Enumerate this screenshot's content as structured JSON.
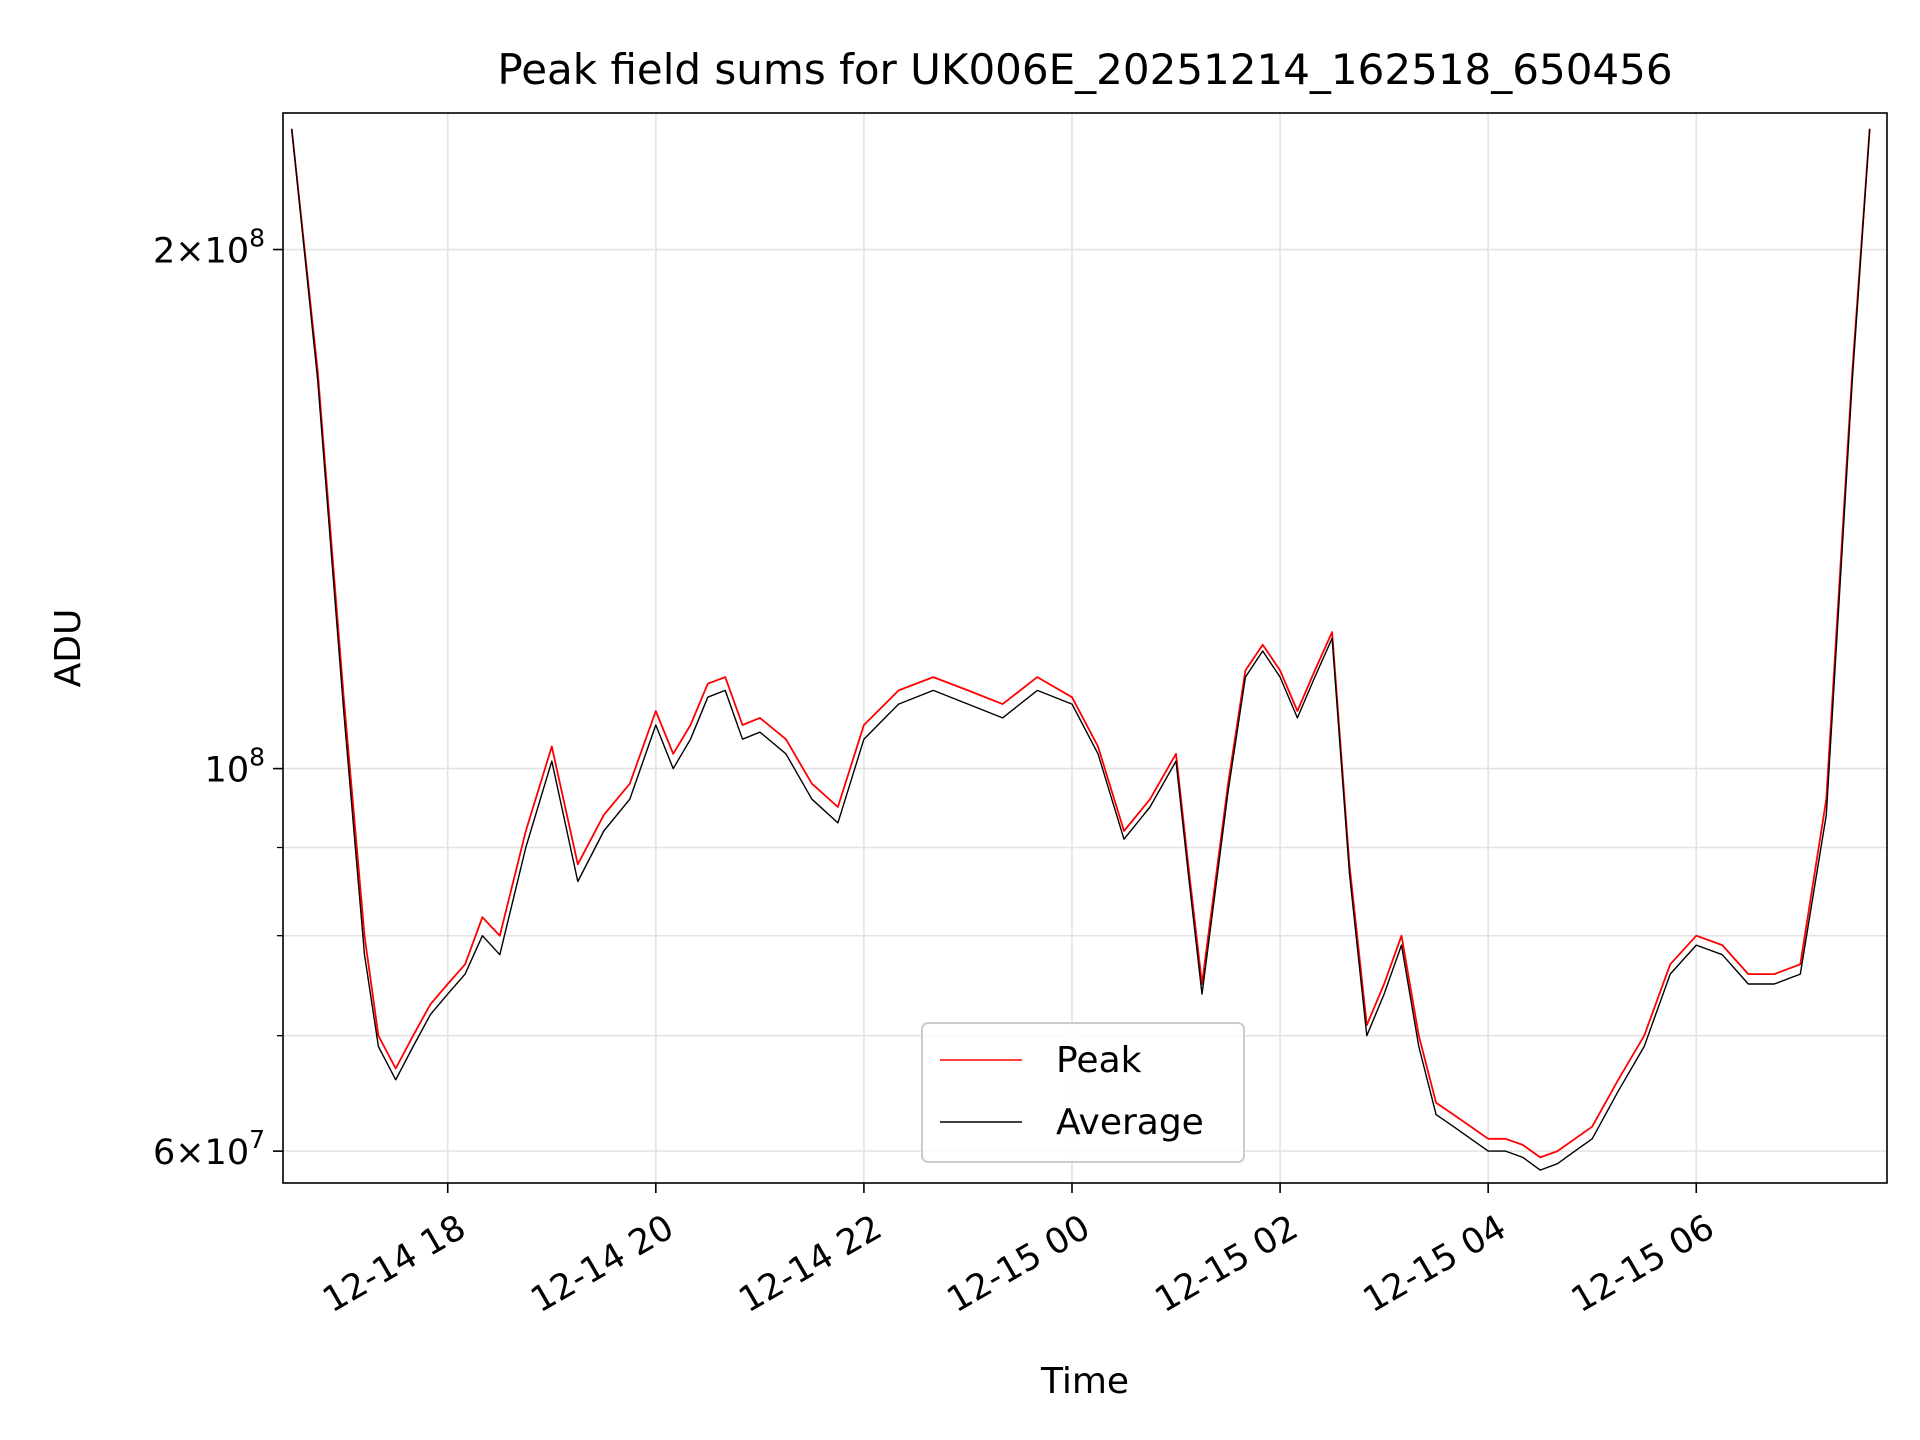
{
  "chart_data": {
    "type": "line",
    "title": "Peak field sums for UK006E_20251214_162518_650456",
    "xlabel": "Time",
    "ylabel": "ADU",
    "yscale": "log",
    "xlim": [
      "2025-12-14 16:25",
      "2025-12-15 07:50"
    ],
    "ylim": [
      57500000,
      240000000
    ],
    "x_ticks": [
      {
        "t": "2025-12-14 18:00",
        "label": "12-14 18"
      },
      {
        "t": "2025-12-14 20:00",
        "label": "12-14 20"
      },
      {
        "t": "2025-12-14 22:00",
        "label": "12-14 22"
      },
      {
        "t": "2025-12-15 00:00",
        "label": "12-15 00"
      },
      {
        "t": "2025-12-15 02:00",
        "label": "12-15 02"
      },
      {
        "t": "2025-12-15 04:00",
        "label": "12-15 04"
      },
      {
        "t": "2025-12-15 06:00",
        "label": "12-15 06"
      }
    ],
    "y_major_ticks": [
      {
        "value": 60000000,
        "mant": "6",
        "exp": "7"
      },
      {
        "value": 100000000,
        "mant": "",
        "exp": "8"
      },
      {
        "value": 200000000,
        "mant": "2",
        "exp": "8"
      }
    ],
    "y_minor_ticks": [
      70000000,
      80000000,
      90000000
    ],
    "grid": true,
    "legend_position": "lower-center",
    "series": [
      {
        "name": "Peak",
        "color": "#ff0000",
        "x": [
          "2025-12-14 16:30",
          "2025-12-14 16:45",
          "2025-12-14 17:00",
          "2025-12-14 17:12",
          "2025-12-14 17:20",
          "2025-12-14 17:30",
          "2025-12-14 17:40",
          "2025-12-14 17:50",
          "2025-12-14 18:00",
          "2025-12-14 18:10",
          "2025-12-14 18:20",
          "2025-12-14 18:30",
          "2025-12-14 18:45",
          "2025-12-14 19:00",
          "2025-12-14 19:15",
          "2025-12-14 19:30",
          "2025-12-14 19:45",
          "2025-12-14 20:00",
          "2025-12-14 20:10",
          "2025-12-14 20:20",
          "2025-12-14 20:30",
          "2025-12-14 20:40",
          "2025-12-14 20:50",
          "2025-12-14 21:00",
          "2025-12-14 21:15",
          "2025-12-14 21:30",
          "2025-12-14 21:45",
          "2025-12-14 22:00",
          "2025-12-14 22:20",
          "2025-12-14 22:40",
          "2025-12-14 23:00",
          "2025-12-14 23:20",
          "2025-12-14 23:40",
          "2025-12-15 00:00",
          "2025-12-15 00:15",
          "2025-12-15 00:30",
          "2025-12-15 00:45",
          "2025-12-15 01:00",
          "2025-12-15 01:07",
          "2025-12-15 01:15",
          "2025-12-15 01:30",
          "2025-12-15 01:40",
          "2025-12-15 01:50",
          "2025-12-15 02:00",
          "2025-12-15 02:10",
          "2025-12-15 02:20",
          "2025-12-15 02:30",
          "2025-12-15 02:40",
          "2025-12-15 02:50",
          "2025-12-15 03:00",
          "2025-12-15 03:10",
          "2025-12-15 03:20",
          "2025-12-15 03:30",
          "2025-12-15 03:40",
          "2025-12-15 03:50",
          "2025-12-15 04:00",
          "2025-12-15 04:10",
          "2025-12-15 04:20",
          "2025-12-15 04:30",
          "2025-12-15 04:40",
          "2025-12-15 04:50",
          "2025-12-15 05:00",
          "2025-12-15 05:15",
          "2025-12-15 05:30",
          "2025-12-15 05:45",
          "2025-12-15 06:00",
          "2025-12-15 06:15",
          "2025-12-15 06:30",
          "2025-12-15 06:45",
          "2025-12-15 07:00",
          "2025-12-15 07:15",
          "2025-12-15 07:30",
          "2025-12-15 07:40"
        ],
        "values": [
          235000000,
          170000000,
          110000000,
          80000000,
          70000000,
          67000000,
          70000000,
          73000000,
          75000000,
          77000000,
          82000000,
          80000000,
          92000000,
          103000000,
          88000000,
          94000000,
          98000000,
          108000000,
          102000000,
          106000000,
          112000000,
          113000000,
          106000000,
          107000000,
          104000000,
          98000000,
          95000000,
          106000000,
          111000000,
          113000000,
          111000000,
          109000000,
          113000000,
          110000000,
          103000000,
          92000000,
          96000000,
          102000000,
          88000000,
          75000000,
          98000000,
          114000000,
          118000000,
          114000000,
          108000000,
          114000000,
          120000000,
          88000000,
          71000000,
          75000000,
          80000000,
          70000000,
          64000000,
          63000000,
          62000000,
          61000000,
          61000000,
          60500000,
          59500000,
          60000000,
          61000000,
          62000000,
          66000000,
          70000000,
          77000000,
          80000000,
          79000000,
          76000000,
          76000000,
          77000000,
          96000000,
          170000000,
          235000000
        ]
      },
      {
        "name": "Average",
        "color": "#000000",
        "x": [
          "2025-12-14 16:30",
          "2025-12-14 16:45",
          "2025-12-14 17:00",
          "2025-12-14 17:12",
          "2025-12-14 17:20",
          "2025-12-14 17:30",
          "2025-12-14 17:40",
          "2025-12-14 17:50",
          "2025-12-14 18:00",
          "2025-12-14 18:10",
          "2025-12-14 18:20",
          "2025-12-14 18:30",
          "2025-12-14 18:45",
          "2025-12-14 19:00",
          "2025-12-14 19:15",
          "2025-12-14 19:30",
          "2025-12-14 19:45",
          "2025-12-14 20:00",
          "2025-12-14 20:10",
          "2025-12-14 20:20",
          "2025-12-14 20:30",
          "2025-12-14 20:40",
          "2025-12-14 20:50",
          "2025-12-14 21:00",
          "2025-12-14 21:15",
          "2025-12-14 21:30",
          "2025-12-14 21:45",
          "2025-12-14 22:00",
          "2025-12-14 22:20",
          "2025-12-14 22:40",
          "2025-12-14 23:00",
          "2025-12-14 23:20",
          "2025-12-14 23:40",
          "2025-12-15 00:00",
          "2025-12-15 00:15",
          "2025-12-15 00:30",
          "2025-12-15 00:45",
          "2025-12-15 01:00",
          "2025-12-15 01:07",
          "2025-12-15 01:15",
          "2025-12-15 01:30",
          "2025-12-15 01:40",
          "2025-12-15 01:50",
          "2025-12-15 02:00",
          "2025-12-15 02:10",
          "2025-12-15 02:20",
          "2025-12-15 02:30",
          "2025-12-15 02:40",
          "2025-12-15 02:50",
          "2025-12-15 03:00",
          "2025-12-15 03:10",
          "2025-12-15 03:20",
          "2025-12-15 03:30",
          "2025-12-15 03:40",
          "2025-12-15 03:50",
          "2025-12-15 04:00",
          "2025-12-15 04:10",
          "2025-12-15 04:20",
          "2025-12-15 04:30",
          "2025-12-15 04:40",
          "2025-12-15 04:50",
          "2025-12-15 05:00",
          "2025-12-15 05:15",
          "2025-12-15 05:30",
          "2025-12-15 05:45",
          "2025-12-15 06:00",
          "2025-12-15 06:15",
          "2025-12-15 06:30",
          "2025-12-15 06:45",
          "2025-12-15 07:00",
          "2025-12-15 07:15",
          "2025-12-15 07:30",
          "2025-12-15 07:40"
        ],
        "values": [
          235000000,
          168000000,
          108000000,
          78000000,
          69000000,
          66000000,
          69000000,
          72000000,
          74000000,
          76000000,
          80000000,
          78000000,
          90000000,
          101000000,
          86000000,
          92000000,
          96000000,
          106000000,
          100000000,
          104000000,
          110000000,
          111000000,
          104000000,
          105000000,
          102000000,
          96000000,
          93000000,
          104000000,
          109000000,
          111000000,
          109000000,
          107000000,
          111000000,
          109000000,
          102000000,
          91000000,
          95000000,
          101000000,
          87000000,
          74000000,
          97000000,
          113000000,
          117000000,
          113000000,
          107000000,
          113000000,
          119000000,
          87000000,
          70000000,
          74000000,
          79000000,
          69000000,
          63000000,
          62000000,
          61000000,
          60000000,
          60000000,
          59500000,
          58500000,
          59000000,
          60000000,
          61000000,
          65000000,
          69000000,
          76000000,
          79000000,
          78000000,
          75000000,
          75000000,
          76000000,
          94000000,
          168000000,
          235000000
        ]
      }
    ]
  }
}
